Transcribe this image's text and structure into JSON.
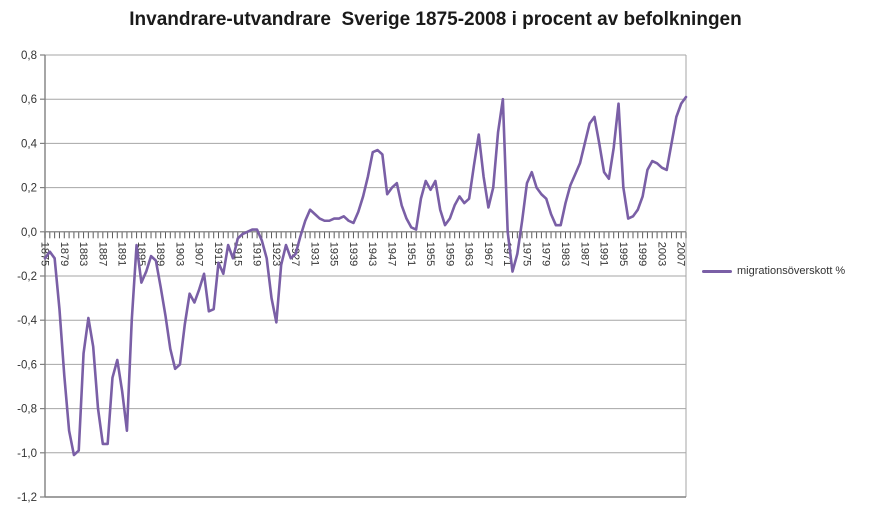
{
  "chart_data": {
    "type": "line",
    "title": "Invandrare-utvandrare  Sverige 1875-2008 i procent av befolkningen",
    "x_start": 1875,
    "x_end": 2008,
    "x_tick_labels": [
      1875,
      1879,
      1883,
      1887,
      1891,
      1895,
      1899,
      1903,
      1907,
      1911,
      1915,
      1919,
      1923,
      1927,
      1931,
      1935,
      1939,
      1943,
      1947,
      1951,
      1955,
      1959,
      1963,
      1967,
      1971,
      1975,
      1979,
      1983,
      1987,
      1991,
      1995,
      1999,
      2003,
      2007
    ],
    "y_ticks": [
      0.8,
      0.6,
      0.4,
      0.2,
      0.0,
      -0.2,
      -0.4,
      -0.6,
      -0.8,
      -1.0,
      -1.2
    ],
    "y_tick_labels": [
      "0,8",
      "0,6",
      "0,4",
      "0,2",
      "0,0",
      "-0,2",
      "-0,4",
      "-0,6",
      "-0,8",
      "-1,0",
      "-1,2"
    ],
    "ylim": [
      -1.2,
      0.8
    ],
    "grid": "horizontal",
    "legend_position": "right",
    "series": [
      {
        "name": "migrationsöverskott %",
        "color": "#7A5FA6",
        "values": [
          -0.12,
          -0.09,
          -0.12,
          -0.35,
          -0.65,
          -0.9,
          -1.01,
          -0.99,
          -0.55,
          -0.39,
          -0.52,
          -0.8,
          -0.96,
          -0.96,
          -0.66,
          -0.58,
          -0.72,
          -0.9,
          -0.4,
          -0.06,
          -0.23,
          -0.18,
          -0.11,
          -0.13,
          -0.25,
          -0.38,
          -0.53,
          -0.62,
          -0.6,
          -0.42,
          -0.28,
          -0.32,
          -0.26,
          -0.19,
          -0.36,
          -0.35,
          -0.14,
          -0.19,
          -0.06,
          -0.12,
          -0.03,
          -0.01,
          0.0,
          0.01,
          0.01,
          -0.04,
          -0.12,
          -0.3,
          -0.41,
          -0.15,
          -0.06,
          -0.12,
          -0.1,
          -0.02,
          0.05,
          0.1,
          0.08,
          0.06,
          0.05,
          0.05,
          0.06,
          0.06,
          0.07,
          0.05,
          0.04,
          0.09,
          0.16,
          0.25,
          0.36,
          0.37,
          0.35,
          0.17,
          0.2,
          0.22,
          0.12,
          0.06,
          0.02,
          0.01,
          0.15,
          0.23,
          0.19,
          0.23,
          0.1,
          0.03,
          0.06,
          0.12,
          0.16,
          0.13,
          0.15,
          0.3,
          0.44,
          0.25,
          0.11,
          0.2,
          0.45,
          0.6,
          0.0,
          -0.18,
          -0.1,
          0.05,
          0.22,
          0.27,
          0.2,
          0.17,
          0.15,
          0.08,
          0.03,
          0.03,
          0.13,
          0.21,
          0.26,
          0.31,
          0.4,
          0.49,
          0.52,
          0.4,
          0.27,
          0.24,
          0.38,
          0.58,
          0.2,
          0.06,
          0.07,
          0.1,
          0.16,
          0.28,
          0.32,
          0.31,
          0.29,
          0.28,
          0.4,
          0.52,
          0.58,
          0.61
        ]
      }
    ]
  },
  "legend": {
    "label": "migrationsöverskott %"
  },
  "colors": {
    "line": "#7A5FA6",
    "gridline": "#A6A6A6",
    "axis": "#808080",
    "tick": "#595959",
    "label_text": "#333333",
    "background": "#FFFFFF"
  }
}
